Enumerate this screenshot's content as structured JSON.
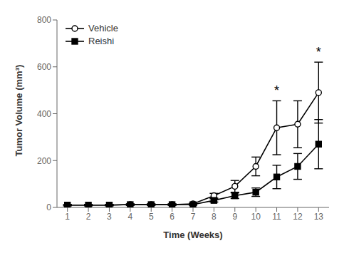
{
  "chart_data": {
    "type": "line",
    "x": [
      1,
      2,
      3,
      4,
      5,
      6,
      7,
      8,
      9,
      10,
      11,
      12,
      13
    ],
    "series": [
      {
        "name": "Vehicle",
        "color": "#000000",
        "marker": "open_circle",
        "line_style": "solid",
        "values": [
          10,
          10,
          10,
          12,
          12,
          12,
          15,
          50,
          90,
          175,
          340,
          355,
          490
        ],
        "errors": [
          3,
          3,
          3,
          3,
          3,
          3,
          3,
          10,
          25,
          40,
          115,
          100,
          130
        ]
      },
      {
        "name": "Reishi",
        "color": "#000000",
        "marker": "square",
        "line_style": "solid",
        "values": [
          10,
          10,
          10,
          12,
          12,
          12,
          12,
          30,
          50,
          65,
          130,
          175,
          270
        ],
        "errors": [
          3,
          3,
          3,
          3,
          3,
          3,
          3,
          7,
          12,
          18,
          50,
          55,
          105
        ]
      }
    ],
    "xlabel": "Time (Weeks)",
    "ylabel": "Tumor Volume (mm³)",
    "xlim": [
      0.5,
      13.5
    ],
    "xticks": [
      1,
      2,
      3,
      4,
      5,
      6,
      7,
      8,
      9,
      10,
      11,
      12,
      13
    ],
    "ylim": [
      0,
      800
    ],
    "yticks": [
      0,
      200,
      400,
      600,
      800
    ],
    "grid": false,
    "legend": "upper left",
    "annotations": [
      {
        "text": "*",
        "x": 11,
        "series": "Vehicle"
      },
      {
        "text": "*",
        "x": 13,
        "series": "Vehicle"
      }
    ]
  }
}
